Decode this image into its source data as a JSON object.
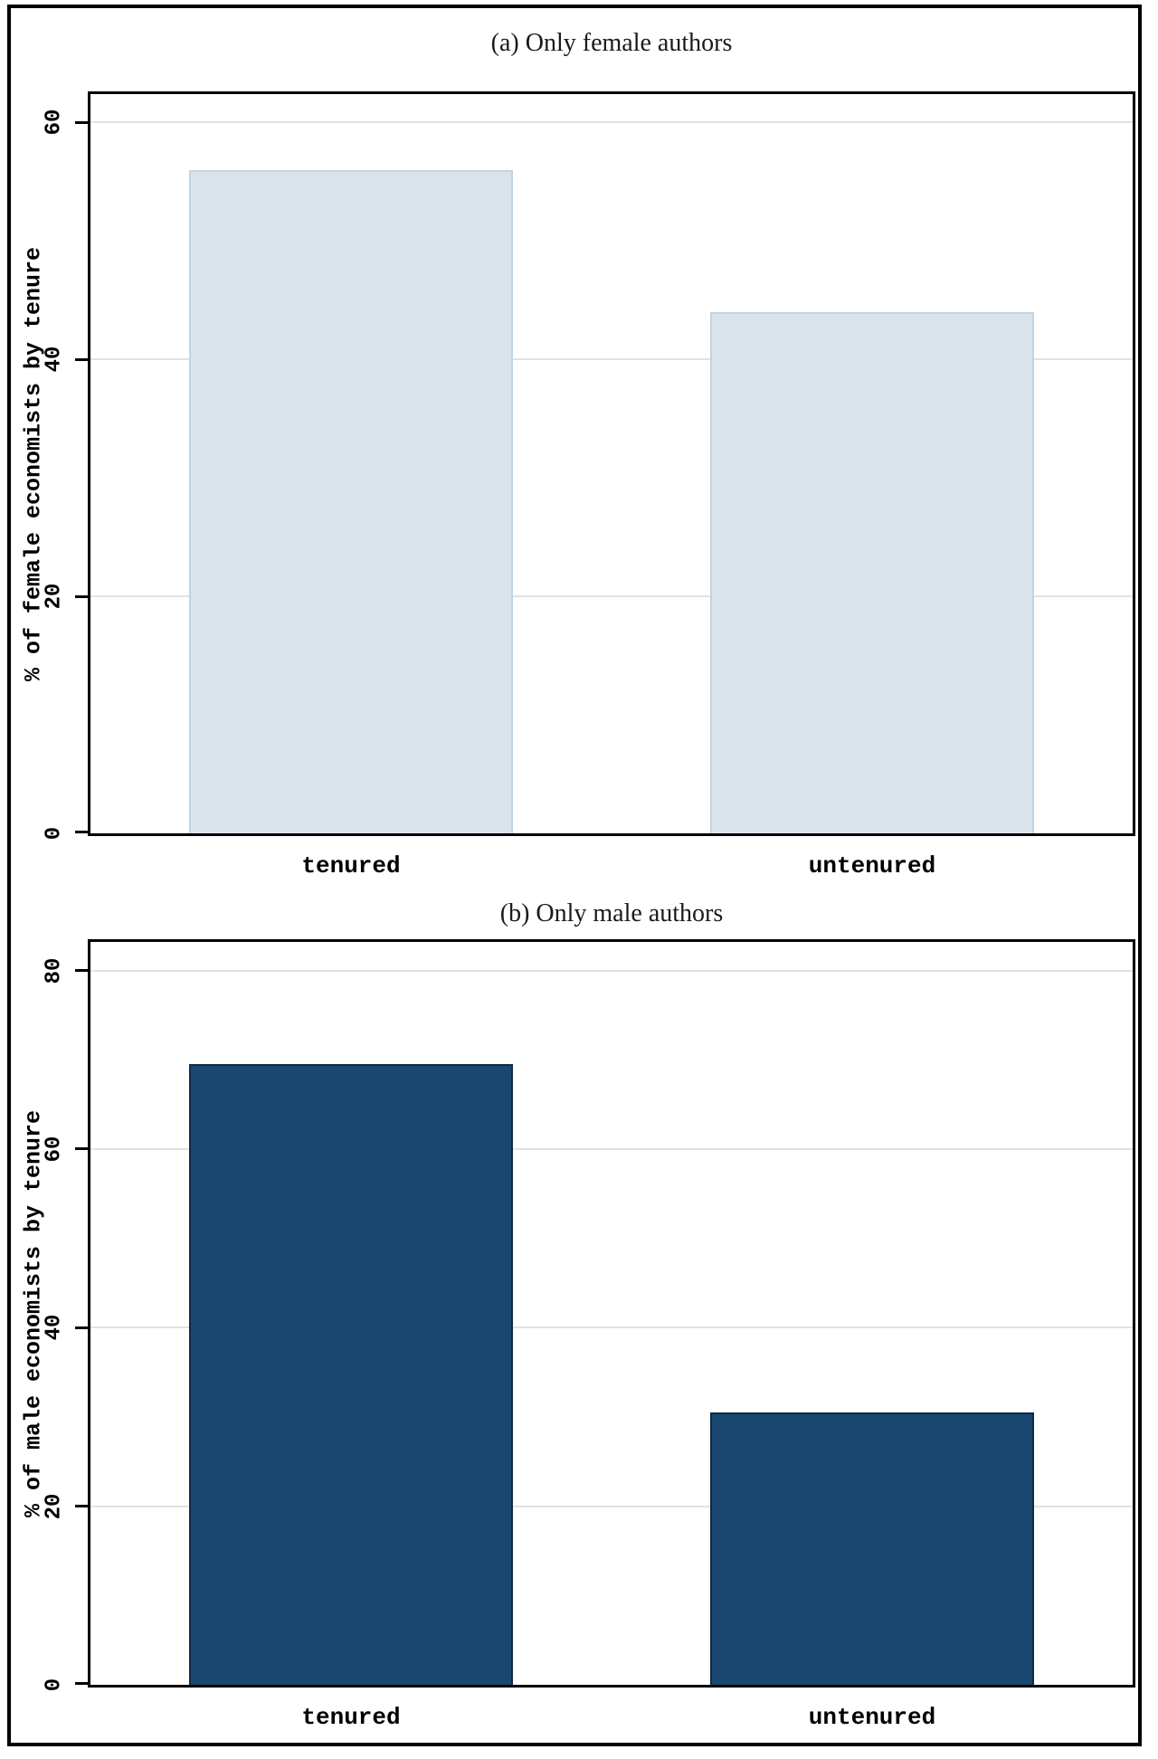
{
  "page": {
    "background": "#ffffff",
    "frame_color": "#000000",
    "gridline_color": "#e2e2e2"
  },
  "chart_data": [
    {
      "type": "bar",
      "title": "(a) Only female authors",
      "ylabel": "% of female economists by tenure",
      "categories": [
        "tenured",
        "untenured"
      ],
      "values": [
        56,
        44
      ],
      "yticks": [
        0,
        20,
        40,
        60
      ],
      "ylim": [
        0,
        62.4
      ],
      "grid": true,
      "legend_position": "none",
      "bar_color": "#d9e3ec",
      "bar_border_color": "#c3d3e1"
    },
    {
      "type": "bar",
      "title": "(b) Only male authors",
      "ylabel": "% of male economists by tenure",
      "categories": [
        "tenured",
        "untenured"
      ],
      "values": [
        69.5,
        30.5
      ],
      "yticks": [
        0,
        20,
        40,
        60,
        80
      ],
      "ylim": [
        0,
        83.2
      ],
      "grid": true,
      "legend_position": "none",
      "bar_color": "#1a476f",
      "bar_border_color": "#0d2b47"
    }
  ]
}
